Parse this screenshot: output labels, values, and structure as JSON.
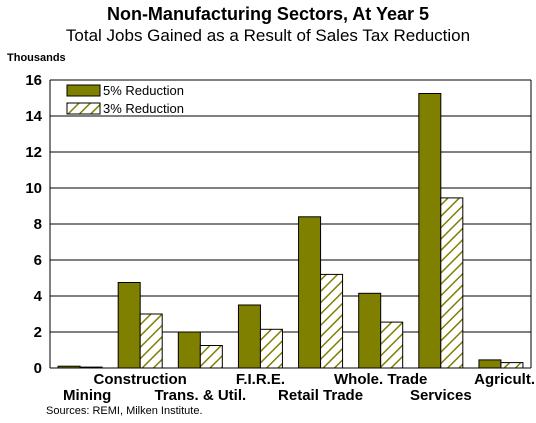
{
  "chart_data": {
    "type": "bar",
    "title": "Non-Manufacturing Sectors, At Year 5",
    "subtitle": "Total Jobs Gained as a Result of Sales Tax Reduction",
    "ylabel": "Thousands",
    "xlabel": "",
    "ylim": [
      0,
      16
    ],
    "yticks": [
      0,
      2,
      4,
      6,
      8,
      10,
      12,
      14,
      16
    ],
    "grid": true,
    "legend_position": "top-left",
    "categories": [
      "Mining",
      "Construction",
      "Trans. & Util.",
      "F.I.R.E.",
      "Retail Trade",
      "Whole. Trade",
      "Services",
      "Agricult."
    ],
    "series": [
      {
        "name": "5% Reduction",
        "values": [
          0.1,
          4.75,
          2.0,
          3.5,
          8.4,
          4.15,
          15.25,
          0.45
        ],
        "color": "#808000",
        "pattern": "solid"
      },
      {
        "name": "3% Reduction",
        "values": [
          0.05,
          3.0,
          1.25,
          2.15,
          5.2,
          2.55,
          9.45,
          0.3
        ],
        "color": "#808000",
        "pattern": "hatched"
      }
    ],
    "source": "Sources: REMI, Milken Institute."
  }
}
